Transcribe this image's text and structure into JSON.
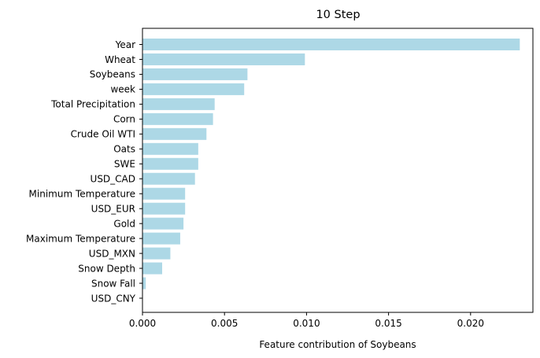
{
  "chart_data": {
    "type": "bar",
    "orientation": "horizontal",
    "title": "10 Step",
    "xlabel": "Feature contribution of Soybeans",
    "ylabel": "",
    "xlim": [
      0,
      0.0238
    ],
    "xticks": [
      "0.000",
      "0.005",
      "0.010",
      "0.015",
      "0.020"
    ],
    "xtick_values": [
      0,
      0.005,
      0.01,
      0.015,
      0.02
    ],
    "bar_color": "#add8e6",
    "grid": false,
    "categories": [
      "Year",
      "Wheat",
      "Soybeans",
      "week",
      "Total Precipitation",
      "Corn",
      "Crude Oil WTI",
      "Oats",
      "SWE",
      "USD_CAD",
      "Minimum Temperature",
      "USD_EUR",
      "Gold",
      "Maximum Temperature",
      "USD_MXN",
      "Snow Depth",
      "Snow Fall",
      "USD_CNY"
    ],
    "values": [
      0.023,
      0.0099,
      0.0064,
      0.0062,
      0.0044,
      0.0043,
      0.0039,
      0.0034,
      0.0034,
      0.0032,
      0.0026,
      0.0026,
      0.0025,
      0.0023,
      0.0017,
      0.0012,
      0.0002,
      0.0
    ]
  }
}
